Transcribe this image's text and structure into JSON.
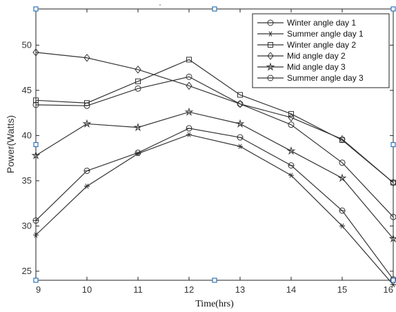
{
  "chart_data": {
    "type": "line",
    "title": "",
    "top_mark": "-",
    "xlabel": "Time(hrs)",
    "ylabel": "Power(Watts)",
    "x": [
      9,
      10,
      11,
      12,
      13,
      14,
      15,
      16
    ],
    "x_tick_labels": [
      "9",
      "10",
      "11",
      "12",
      "13",
      "14",
      "15",
      "16"
    ],
    "y_ticks": [
      25,
      30,
      35,
      40,
      45,
      50
    ],
    "xlim": [
      9,
      16
    ],
    "ylim": [
      24,
      54
    ],
    "grid": false,
    "legend_position": "top-right",
    "line_color": "#333333",
    "series": [
      {
        "name": "Winter angle day 1",
        "marker": "circle",
        "values": [
          43.4,
          43.3,
          45.2,
          46.5,
          43.5,
          41.2,
          37.0,
          31.0
        ]
      },
      {
        "name": "Summer angle day 1",
        "marker": "asterisk",
        "values": [
          29.0,
          34.4,
          38.0,
          40.1,
          38.8,
          35.6,
          30.0,
          23.5
        ]
      },
      {
        "name": "Winter angle day 2",
        "marker": "square",
        "values": [
          43.9,
          43.6,
          46.0,
          48.4,
          44.5,
          42.4,
          39.5,
          34.8
        ]
      },
      {
        "name": "Mid angle day 2",
        "marker": "diamond",
        "values": [
          49.2,
          48.6,
          47.3,
          45.5,
          43.5,
          42.0,
          39.6,
          34.8
        ]
      },
      {
        "name": "Mid angle day 3",
        "marker": "star",
        "values": [
          37.8,
          41.3,
          40.9,
          42.6,
          41.3,
          38.3,
          35.3,
          28.6
        ]
      },
      {
        "name": "Summer angle day 3",
        "marker": "circle-dot",
        "values": [
          30.6,
          36.1,
          38.1,
          40.8,
          39.8,
          36.7,
          31.7,
          24.1
        ]
      }
    ]
  }
}
